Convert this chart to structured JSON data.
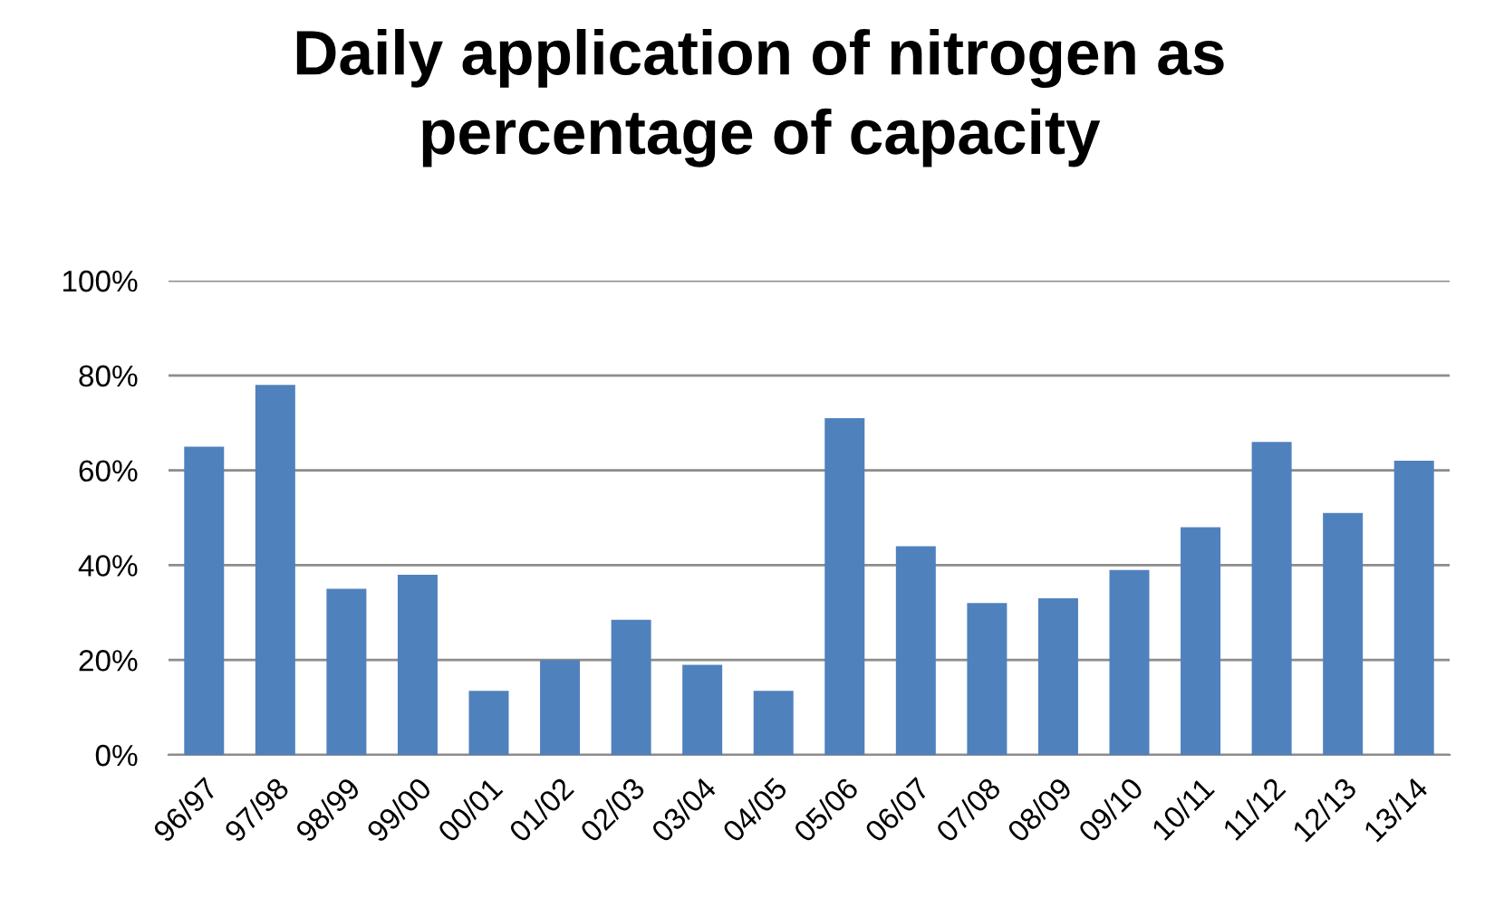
{
  "chart_data": {
    "type": "bar",
    "title": "Daily application of nitrogen as\npercentage of capacity",
    "categories": [
      "96/97",
      "97/98",
      "98/99",
      "99/00",
      "00/01",
      "01/02",
      "02/03",
      "03/04",
      "04/05",
      "05/06",
      "06/07",
      "07/08",
      "08/09",
      "09/10",
      "10/11",
      "11/12",
      "12/13",
      "13/14"
    ],
    "values": [
      65,
      78,
      35,
      38,
      13.5,
      20,
      28.5,
      19,
      13.5,
      71,
      44,
      32,
      33,
      39,
      48,
      66,
      51,
      62
    ],
    "color": "#4f81bd",
    "ylim": [
      0,
      100
    ],
    "yticks": [
      {
        "value": 0,
        "label": "0%"
      },
      {
        "value": 20,
        "label": "20%"
      },
      {
        "value": 40,
        "label": "40%"
      },
      {
        "value": 60,
        "label": "60%"
      },
      {
        "value": 80,
        "label": "80%"
      },
      {
        "value": 100,
        "label": "100%"
      }
    ],
    "grid": "y"
  }
}
